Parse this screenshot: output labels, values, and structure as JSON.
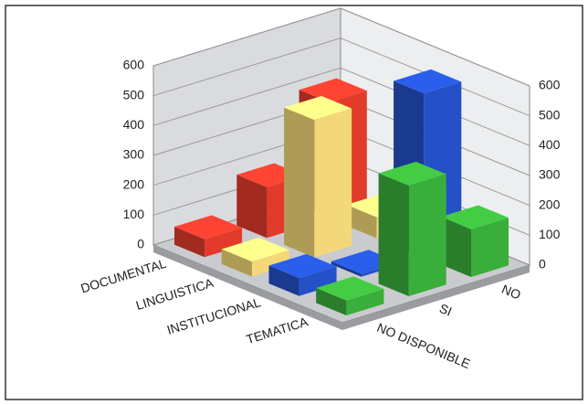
{
  "chart_data": {
    "type": "bar3d",
    "categories": [
      "NO DISPONIBLE",
      "SI",
      "NO"
    ],
    "series": [
      {
        "name": "DOCUMENTAL",
        "color": "#e23a2b",
        "values": [
          60,
          170,
          390
        ]
      },
      {
        "name": "LINGUISTICA",
        "color": "#f2d878",
        "values": [
          50,
          460,
          70
        ]
      },
      {
        "name": "INSTITUCIONAL",
        "color": "#2450c8",
        "values": [
          60,
          10,
          550
        ]
      },
      {
        "name": "TEMATICA",
        "color": "#3aae3a",
        "values": [
          50,
          370,
          160
        ]
      }
    ],
    "ylim": [
      0,
      600
    ],
    "yticks": [
      0,
      100,
      200,
      300,
      400,
      500,
      600
    ],
    "grid": true
  }
}
